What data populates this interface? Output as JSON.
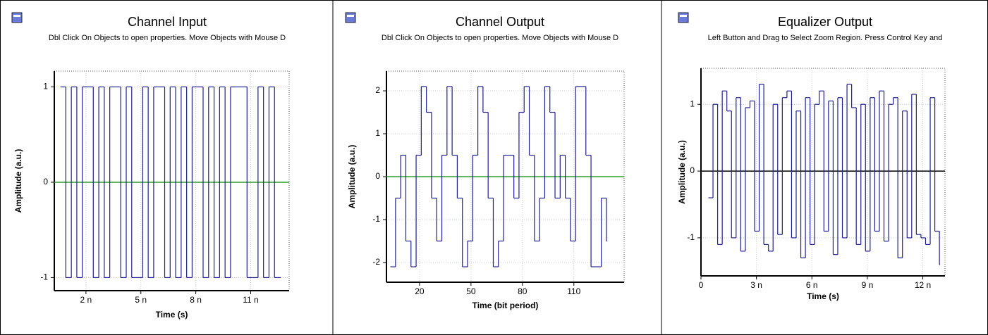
{
  "chart_data": [
    {
      "type": "line",
      "step": true,
      "title": "Channel Input",
      "subtitle": "Dbl Click On Objects to open properties.  Move Objects with Mouse D",
      "x_label": "Time (s)",
      "y_label": "Amplitude (a.u.)",
      "color": "#1f1f8f",
      "zero_line_color": "#2ca02c",
      "grid": true,
      "xlim": [
        0.27,
        13.1
      ],
      "ylim": [
        -1.137,
        1.166
      ],
      "xticks": [
        {
          "value": 2,
          "label": "2 n"
        },
        {
          "value": 5,
          "label": "5 n"
        },
        {
          "value": 8,
          "label": "8 n"
        },
        {
          "value": 11,
          "label": "11 n"
        }
      ],
      "yticks": [
        -1,
        0,
        1
      ],
      "x": [
        0.6,
        0.9,
        1.2,
        1.5,
        1.8,
        2.1,
        2.4,
        2.7,
        3.0,
        3.3,
        3.6,
        3.9,
        4.2,
        4.5,
        4.8,
        5.1,
        5.4,
        5.7,
        6.0,
        6.3,
        6.6,
        6.9,
        7.2,
        7.5,
        7.8,
        8.1,
        8.4,
        8.7,
        9.0,
        9.3,
        9.6,
        9.9,
        10.2,
        10.5,
        10.8,
        11.1,
        11.4,
        11.7,
        12.0,
        12.3,
        12.6
      ],
      "values": [
        1,
        -1,
        1,
        -1,
        1,
        1,
        -1,
        1,
        -1,
        1,
        1,
        -1,
        1,
        -1,
        -1,
        1,
        -1,
        1,
        1,
        -1,
        1,
        -1,
        1,
        -1,
        1,
        1,
        -1,
        1,
        -1,
        1,
        -1,
        1,
        1,
        1,
        -1,
        -1,
        1,
        -1,
        1,
        -1,
        -1
      ]
    },
    {
      "type": "line",
      "step": true,
      "title": "Channel Output",
      "subtitle": "Dbl Click On Objects to open properties.  Move Objects with Mouse D",
      "x_label": "Time (bit period)",
      "y_label": "Amplitude (a.u.)",
      "color": "#1f1f8f",
      "zero_line_color": "#2ca02c",
      "grid": true,
      "xlim": [
        0.7,
        139.3
      ],
      "ylim": [
        -2.46,
        2.46
      ],
      "xticks": [
        20,
        50,
        80,
        110
      ],
      "yticks": [
        -2,
        -1,
        0,
        1,
        2
      ],
      "x": [
        3,
        6,
        9,
        12,
        15,
        18,
        21,
        24,
        27,
        30,
        33,
        36,
        39,
        42,
        45,
        48,
        51,
        54,
        57,
        60,
        63,
        66,
        69,
        72,
        75,
        78,
        81,
        84,
        87,
        90,
        93,
        96,
        99,
        102,
        105,
        108,
        111,
        114,
        117,
        120,
        123,
        126,
        129
      ],
      "values": [
        -2.1,
        -0.5,
        0.5,
        -1.5,
        -2.1,
        0.5,
        2.1,
        1.5,
        -0.5,
        -1.5,
        0.5,
        2.1,
        0.5,
        -0.5,
        -2.1,
        -1.5,
        0.5,
        2.1,
        1.5,
        -0.5,
        -2.1,
        -1.5,
        0.5,
        0.5,
        -0.5,
        1.5,
        2.1,
        0.5,
        -1.5,
        -0.5,
        2.1,
        1.5,
        -0.5,
        0.5,
        -0.5,
        -1.5,
        2.1,
        2.1,
        0.5,
        -2.1,
        -2.1,
        -0.5,
        -1.5
      ]
    },
    {
      "type": "line",
      "step": true,
      "title": "Equalizer Output",
      "subtitle": "Left Button and Drag to Select Zoom Region. Press Control Key and",
      "x_label": "Time (s)",
      "y_label": "Amplitude (a.u.)",
      "color": "#1f1f8f",
      "zero_line_color": "#000000",
      "grid": true,
      "xlim": [
        0,
        13.2
      ],
      "ylim": [
        -1.57,
        1.54
      ],
      "xticks": [
        0,
        {
          "value": 3,
          "label": "3 n"
        },
        {
          "value": 6,
          "label": "6 n"
        },
        {
          "value": 9,
          "label": "9 n"
        },
        {
          "value": 12,
          "label": "12 n"
        }
      ],
      "yticks": [
        -1,
        0,
        1
      ],
      "x": [
        0.4,
        0.65,
        0.9,
        1.15,
        1.4,
        1.65,
        1.9,
        2.15,
        2.4,
        2.65,
        2.9,
        3.15,
        3.4,
        3.65,
        3.9,
        4.15,
        4.4,
        4.65,
        4.9,
        5.15,
        5.4,
        5.65,
        5.9,
        6.15,
        6.4,
        6.65,
        6.9,
        7.15,
        7.4,
        7.65,
        7.9,
        8.15,
        8.4,
        8.65,
        8.9,
        9.15,
        9.4,
        9.65,
        9.9,
        10.15,
        10.4,
        10.65,
        10.9,
        11.15,
        11.4,
        11.65,
        11.9,
        12.15,
        12.4,
        12.65,
        12.9
      ],
      "values": [
        -0.4,
        1.0,
        -1.1,
        1.2,
        0.9,
        -1.0,
        1.1,
        -1.2,
        0.95,
        1.05,
        -0.9,
        1.3,
        -1.1,
        -1.2,
        1.0,
        -0.95,
        1.1,
        1.2,
        -1.0,
        0.9,
        -1.3,
        1.1,
        -1.1,
        1.0,
        1.2,
        -0.9,
        1.05,
        -1.25,
        1.1,
        -1.0,
        1.3,
        0.95,
        -1.1,
        1.0,
        -1.2,
        1.1,
        -0.9,
        1.2,
        -1.05,
        1.0,
        1.1,
        -1.3,
        0.9,
        -1.0,
        1.15,
        -0.95,
        -1.0,
        -1.1,
        1.1,
        -0.9,
        -1.4
      ]
    }
  ]
}
